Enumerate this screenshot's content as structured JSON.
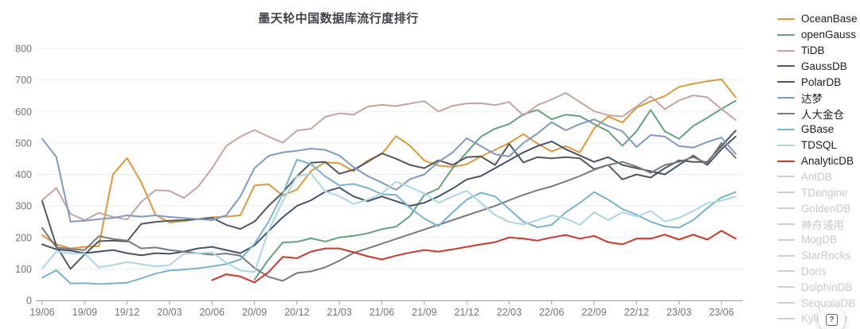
{
  "help": {
    "label": "?"
  },
  "chart_data": {
    "type": "line",
    "title": "墨天轮中国数据库流行度排行",
    "xlabel": "",
    "ylabel": "",
    "ylim": [
      0,
      800
    ],
    "y_ticks": [
      0,
      100,
      200,
      300,
      400,
      500,
      600,
      700,
      800
    ],
    "grid": true,
    "legend_position": "right",
    "x_frequency": "monthly",
    "x_range": "2019/06 to 2023/07",
    "x_tick_labels": [
      "19/06",
      "19/09",
      "19/12",
      "20/03",
      "20/06",
      "20/09",
      "20/12",
      "21/03",
      "21/06",
      "21/09",
      "21/12",
      "22/03",
      "22/06",
      "22/09",
      "22/12",
      "23/03",
      "23/06"
    ],
    "style": {
      "grid_color": "#e7edf3",
      "axis_color": "#9ba1a8",
      "axis_label_color": "#71767f",
      "title_color": "#3f434a",
      "disabled_color": "#ccd0d5",
      "disabled_text_color": "#c6cacf"
    },
    "series": [
      {
        "name": "OceanBase",
        "color": "#e49735",
        "values": [
          207,
          178,
          165,
          170,
          172,
          400,
          452,
          375,
          272,
          247,
          252,
          258,
          264,
          266,
          270,
          365,
          369,
          333,
          352,
          411,
          438,
          436,
          410,
          444,
          465,
          522,
          491,
          444,
          428,
          424,
          432,
          457,
          478,
          500,
          528,
          498,
          473,
          490,
          470,
          546,
          584,
          565,
          612,
          632,
          649,
          678,
          688,
          696,
          702,
          645
        ]
      },
      {
        "name": "openGauss",
        "color": "#63a37d",
        "values": [
          null,
          null,
          null,
          null,
          null,
          null,
          null,
          null,
          null,
          null,
          null,
          null,
          null,
          null,
          null,
          66,
          130,
          184,
          186,
          197,
          187,
          200,
          205,
          213,
          226,
          234,
          268,
          335,
          355,
          420,
          470,
          520,
          545,
          560,
          591,
          605,
          575,
          590,
          585,
          560,
          537,
          491,
          537,
          605,
          537,
          513,
          554,
          580,
          608,
          634
        ]
      },
      {
        "name": "TiDB",
        "color": "#c7a59e",
        "values": [
          318,
          357,
          275,
          255,
          278,
          265,
          257,
          313,
          350,
          348,
          325,
          360,
          420,
          490,
          520,
          541,
          520,
          501,
          539,
          545,
          583,
          594,
          590,
          615,
          621,
          617,
          625,
          633,
          600,
          618,
          625,
          626,
          620,
          630,
          587,
          620,
          638,
          659,
          630,
          601,
          588,
          584,
          616,
          648,
          607,
          635,
          651,
          645,
          608,
          573
        ]
      },
      {
        "name": "GaussDB",
        "color": "#53575e",
        "values": [
          315,
          173,
          100,
          146,
          188,
          190,
          187,
          243,
          249,
          253,
          255,
          258,
          262,
          240,
          227,
          250,
          300,
          343,
          394,
          437,
          440,
          402,
          415,
          440,
          467,
          450,
          430,
          420,
          445,
          430,
          455,
          457,
          430,
          497,
          438,
          455,
          451,
          455,
          451,
          417,
          430,
          384,
          400,
          390,
          420,
          445,
          440,
          440,
          490,
          539
        ]
      },
      {
        "name": "PolarDB",
        "color": "#445569",
        "values": [
          178,
          162,
          158,
          150,
          155,
          160,
          150,
          143,
          150,
          148,
          155,
          165,
          170,
          160,
          150,
          175,
          220,
          264,
          300,
          318,
          345,
          358,
          330,
          315,
          330,
          315,
          300,
          310,
          330,
          355,
          384,
          395,
          420,
          445,
          470,
          490,
          505,
          480,
          460,
          440,
          455,
          430,
          420,
          410,
          400,
          430,
          460,
          430,
          480,
          520
        ]
      },
      {
        "name": "达梦",
        "color": "#7d9bc8",
        "values": [
          513,
          455,
          250,
          253,
          258,
          262,
          270,
          266,
          270,
          265,
          262,
          258,
          255,
          270,
          330,
          420,
          459,
          470,
          475,
          482,
          478,
          460,
          423,
          395,
          374,
          351,
          385,
          400,
          440,
          470,
          515,
          490,
          464,
          457,
          500,
          530,
          566,
          540,
          560,
          575,
          554,
          537,
          487,
          525,
          520,
          490,
          485,
          503,
          517,
          465
        ]
      },
      {
        "name": "人大金仓",
        "color": "#77797d",
        "values": [
          230,
          168,
          163,
          160,
          204,
          195,
          190,
          165,
          168,
          160,
          155,
          150,
          145,
          149,
          142,
          103,
          75,
          62,
          87,
          92,
          105,
          126,
          151,
          165,
          180,
          195,
          210,
          225,
          240,
          255,
          270,
          285,
          300,
          318,
          335,
          350,
          362,
          378,
          395,
          415,
          430,
          440,
          425,
          405,
          430,
          440,
          455,
          435,
          500,
          453
        ]
      },
      {
        "name": "GBase",
        "color": "#75b3d3",
        "values": [
          72,
          96,
          54,
          55,
          52,
          54,
          56,
          70,
          85,
          95,
          98,
          102,
          108,
          115,
          130,
          180,
          250,
          339,
          447,
          433,
          394,
          365,
          370,
          357,
          337,
          335,
          294,
          260,
          236,
          280,
          320,
          342,
          330,
          290,
          250,
          232,
          240,
          280,
          310,
          344,
          320,
          290,
          272,
          250,
          235,
          231,
          255,
          293,
          327,
          344
        ]
      },
      {
        "name": "TDSQL",
        "color": "#a9d8e0",
        "values": [
          102,
          155,
          150,
          148,
          105,
          112,
          122,
          115,
          108,
          112,
          148,
          150,
          152,
          120,
          95,
          90,
          222,
          315,
          394,
          403,
          346,
          331,
          306,
          320,
          340,
          377,
          360,
          340,
          310,
          330,
          348,
          310,
          271,
          249,
          241,
          255,
          270,
          260,
          240,
          280,
          255,
          280,
          266,
          284,
          251,
          262,
          284,
          309,
          317,
          330
        ]
      },
      {
        "name": "AnalyticDB",
        "color": "#d6342a",
        "values": [
          null,
          null,
          null,
          null,
          null,
          null,
          null,
          null,
          null,
          null,
          null,
          null,
          64,
          83,
          76,
          57,
          90,
          138,
          134,
          155,
          165,
          165,
          153,
          140,
          130,
          142,
          152,
          160,
          155,
          162,
          170,
          178,
          185,
          200,
          196,
          190,
          200,
          208,
          196,
          205,
          185,
          178,
          196,
          196,
          209,
          193,
          209,
          193,
          221,
          196
        ]
      }
    ],
    "inactive_series": [
      {
        "name": "AntDB"
      },
      {
        "name": "TDengine"
      },
      {
        "name": "GoldenDB"
      },
      {
        "name": "神舟通用"
      },
      {
        "name": "MogDB"
      },
      {
        "name": "StarRocks"
      },
      {
        "name": "Doris"
      },
      {
        "name": "DolphinDB"
      },
      {
        "name": "SequoiaDB"
      },
      {
        "name": "Kyligence"
      }
    ]
  }
}
